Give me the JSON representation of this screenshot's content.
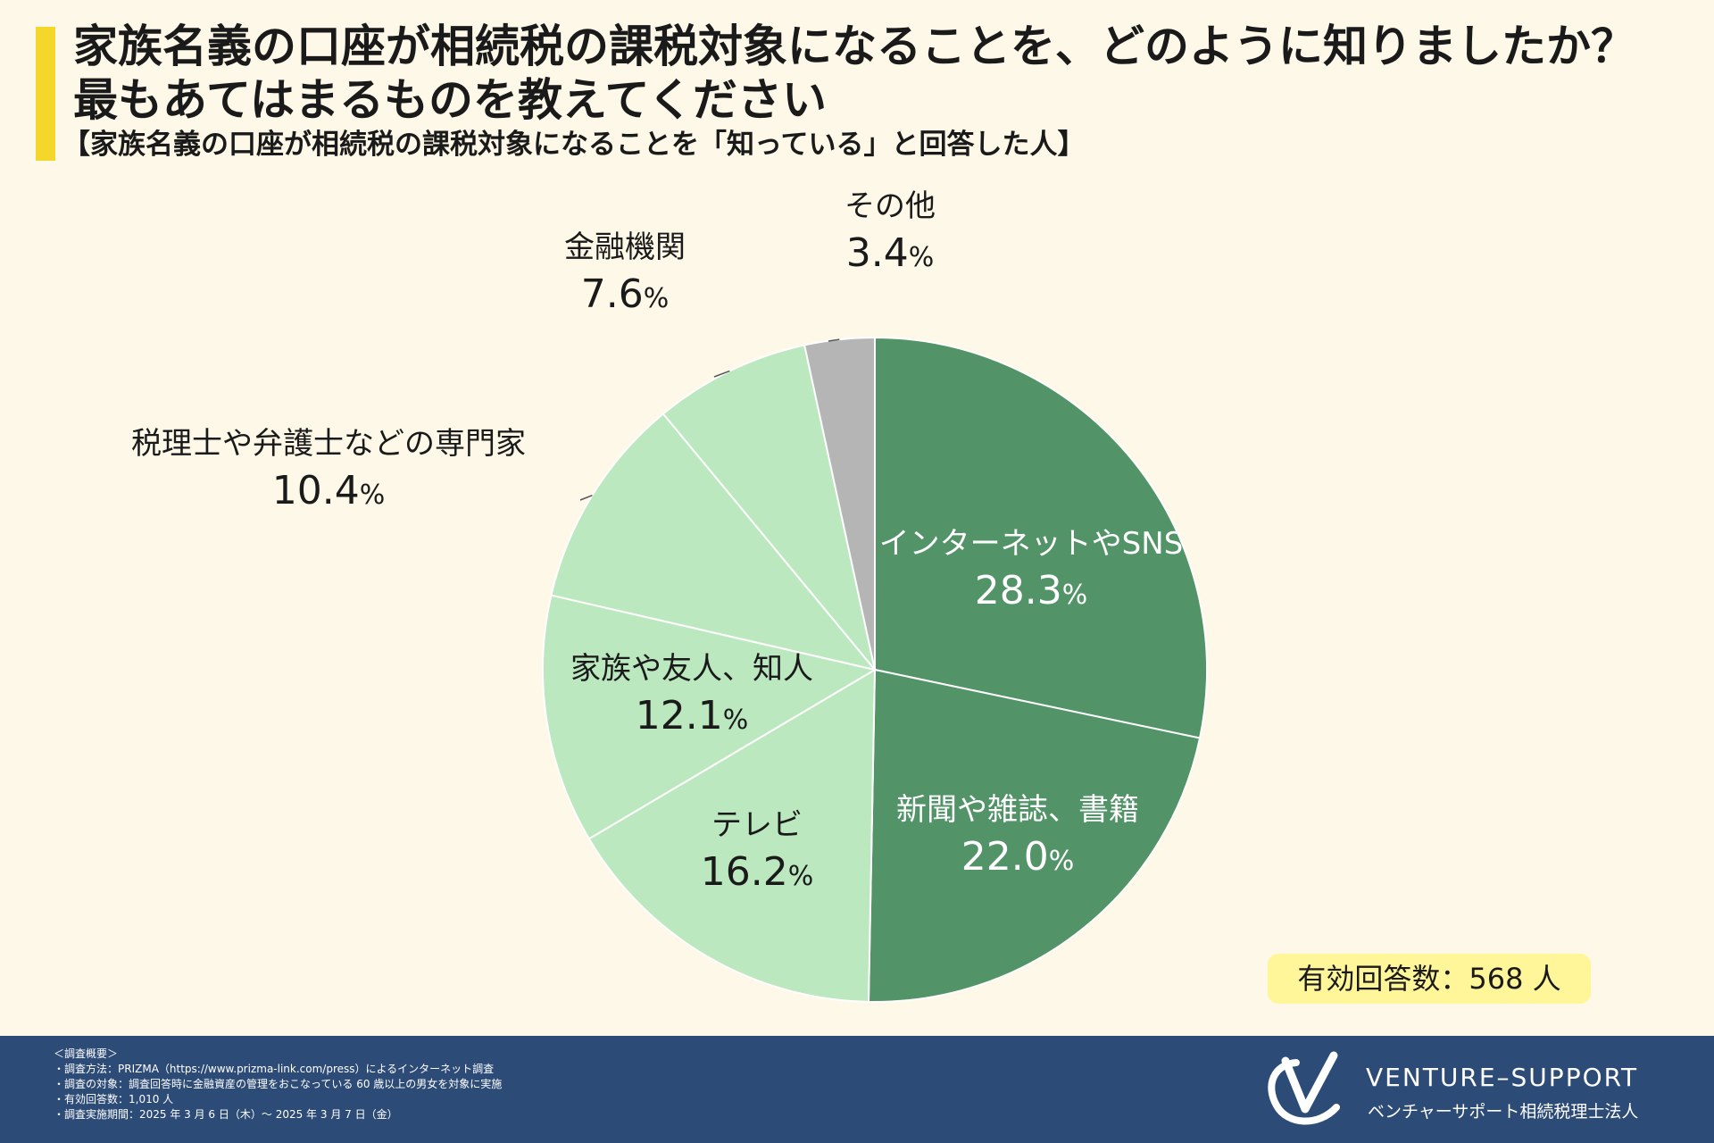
{
  "header": {
    "title_line1": "家族名義の口座が相続税の課税対象になることを、どのように知りましたか？",
    "title_line2": "最もあてはまるものを教えてください",
    "subtitle": "【家族名義の口座が相続税の課税対象になることを「知っている」と回答した人】"
  },
  "chart_data": {
    "type": "pie",
    "unit": "%",
    "slices": [
      {
        "label": "インターネットやSNS",
        "value": 28.3,
        "color": "#529468"
      },
      {
        "label": "新聞や雑誌、書籍",
        "value": 22.0,
        "color": "#529468"
      },
      {
        "label": "テレビ",
        "value": 16.2,
        "color": "#bbe8bf"
      },
      {
        "label": "家族や友人、知人",
        "value": 12.1,
        "color": "#bbe8bf"
      },
      {
        "label": "税理士や弁護士などの専門家",
        "value": 10.4,
        "color": "#bbe8bf"
      },
      {
        "label": "金融機関",
        "value": 7.6,
        "color": "#bbe8bf"
      },
      {
        "label": "その他",
        "value": 3.4,
        "color": "#b5b5b5"
      }
    ]
  },
  "badge": {
    "text": "有効回答数：568 人"
  },
  "footer": {
    "survey_lines": [
      "＜調査概要＞",
      "・調査方法：PRIZMA（https://www.prizma-link.com/press）によるインターネット調査",
      "・調査の対象：調査回答時に金融資産の管理をおこなっている 60 歳以上の男女を対象に実施",
      "・有効回答数：1,010 人",
      "・調査実施期間：2025 年 3 月 6 日（木）～ 2025 年 3 月 7 日（金）"
    ],
    "brand_name": "VENTURE–SUPPORT",
    "brand_sub": "ベンチャーサポート相続税理士法人",
    "logo_icon": "v-swoosh-logo-icon"
  }
}
